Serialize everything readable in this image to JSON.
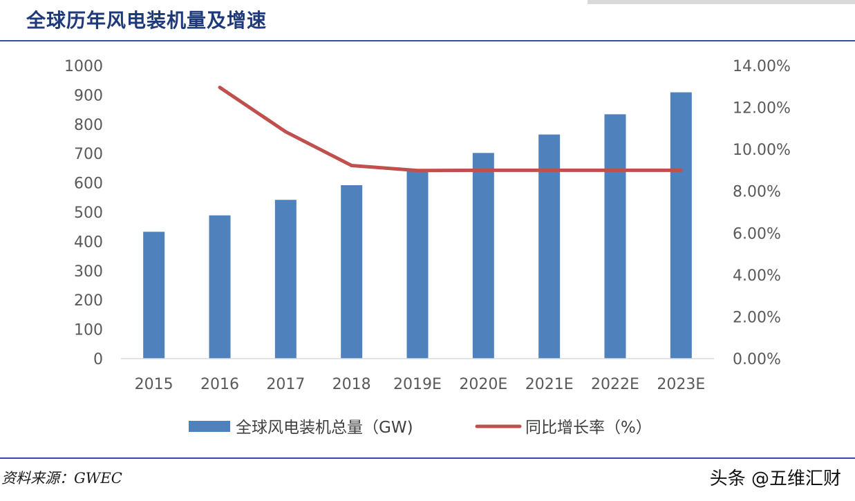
{
  "header": {
    "title": "全球历年风电装机量及增速"
  },
  "footer": {
    "source": "资料来源：GWEC",
    "watermark": "头条 @五维汇财"
  },
  "colors": {
    "bar": "#4f81bd",
    "line": "#c0504d",
    "title": "#1f3a7a",
    "rule": "#2e4f9e"
  },
  "chart_data": {
    "type": "bar+line",
    "categories": [
      "2015",
      "2016",
      "2017",
      "2018",
      "2019E",
      "2020E",
      "2021E",
      "2022E",
      "2023E"
    ],
    "series": [
      {
        "name": "全球风电装机总量（GW)",
        "type": "bar",
        "axis": "left",
        "values": [
          433,
          489,
          542,
          592,
          644,
          702,
          765,
          834,
          909
        ]
      },
      {
        "name": "同比增长率（%）",
        "type": "line",
        "axis": "right",
        "values": [
          null,
          12.96,
          10.84,
          9.23,
          8.99,
          9.0,
          9.0,
          9.0,
          9.0
        ]
      }
    ],
    "y_left": {
      "min": 0,
      "max": 1000,
      "step": 100,
      "ticks": [
        "0",
        "100",
        "200",
        "300",
        "400",
        "500",
        "600",
        "700",
        "800",
        "900",
        "1000"
      ]
    },
    "y_right": {
      "min": 0,
      "max": 14,
      "step": 2,
      "ticks": [
        "0.00%",
        "2.00%",
        "4.00%",
        "6.00%",
        "8.00%",
        "10.00%",
        "12.00%",
        "14.00%"
      ]
    },
    "grid": false,
    "legend": "bottom"
  }
}
